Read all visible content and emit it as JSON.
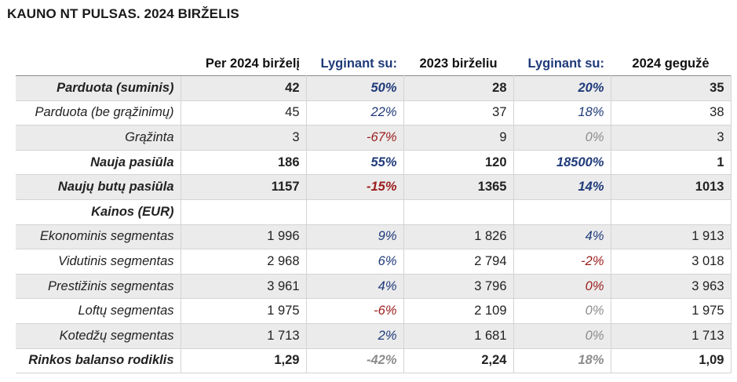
{
  "title": "KAUNO NT PULSAS. 2024 BIRŽELIS",
  "columns": [
    "",
    "Per 2024 birželį",
    "Lyginant su:",
    "2023 birželiu",
    "Lyginant su:",
    "2024 gegužė"
  ],
  "rows": [
    {
      "label": "Parduota (suminis)",
      "bold": true,
      "gray": true,
      "v1": "42",
      "p1": "50%",
      "p1_class": "pos",
      "v2": "28",
      "p2": "20%",
      "p2_class": "pos",
      "v3": "35"
    },
    {
      "label": "Parduota (be grąžinimų)",
      "bold": false,
      "gray": false,
      "v1": "45",
      "p1": "22%",
      "p1_class": "pos",
      "v2": "37",
      "p2": "18%",
      "p2_class": "pos",
      "v3": "38"
    },
    {
      "label": "Grąžinta",
      "bold": false,
      "gray": true,
      "v1": "3",
      "p1": "-67%",
      "p1_class": "neg",
      "v2": "9",
      "p2": "0%",
      "p2_class": "neu",
      "v3": "3"
    },
    {
      "label": "Nauja pasiūla",
      "bold": true,
      "gray": false,
      "v1": "186",
      "p1": "55%",
      "p1_class": "pos",
      "v2": "120",
      "p2": "18500%",
      "p2_class": "pos",
      "v3": "1"
    },
    {
      "label": "Naujų butų pasiūla",
      "bold": true,
      "gray": true,
      "v1": "1157",
      "p1": "-15%",
      "p1_class": "neg",
      "v2": "1365",
      "p2": "14%",
      "p2_class": "pos",
      "v3": "1013"
    },
    {
      "label": "Kainos (EUR)",
      "bold": true,
      "gray": false,
      "v1": "",
      "p1": "",
      "p1_class": "",
      "v2": "",
      "p2": "",
      "p2_class": "",
      "v3": ""
    },
    {
      "label": "Ekonominis segmentas",
      "bold": false,
      "gray": true,
      "v1": "1 996",
      "p1": "9%",
      "p1_class": "pos",
      "v2": "1 826",
      "p2": "4%",
      "p2_class": "pos",
      "v3": "1 913"
    },
    {
      "label": "Vidutinis segmentas",
      "bold": false,
      "gray": false,
      "v1": "2 968",
      "p1": "6%",
      "p1_class": "pos",
      "v2": "2 794",
      "p2": "-2%",
      "p2_class": "neg",
      "v3": "3 018"
    },
    {
      "label": "Prestižinis segmentas",
      "bold": false,
      "gray": true,
      "v1": "3 961",
      "p1": "4%",
      "p1_class": "pos",
      "v2": "3 796",
      "p2": "0%",
      "p2_class": "neg",
      "v3": "3 963"
    },
    {
      "label": "Loftų segmentas",
      "bold": false,
      "gray": false,
      "v1": "1 975",
      "p1": "-6%",
      "p1_class": "neg",
      "v2": "2 109",
      "p2": "0%",
      "p2_class": "neu",
      "v3": "1 975"
    },
    {
      "label": "Kotedžų segmentas",
      "bold": false,
      "gray": true,
      "v1": "1 713",
      "p1": "2%",
      "p1_class": "pos",
      "v2": "1 681",
      "p2": "0%",
      "p2_class": "neu",
      "v3": "1 713"
    },
    {
      "label": "Rinkos balanso rodiklis",
      "bold": true,
      "gray": false,
      "v1": "1,29",
      "p1": "-42%",
      "p1_class": "neu",
      "v2": "2,24",
      "p2": "18%",
      "p2_class": "neu",
      "v3": "1,09"
    }
  ]
}
